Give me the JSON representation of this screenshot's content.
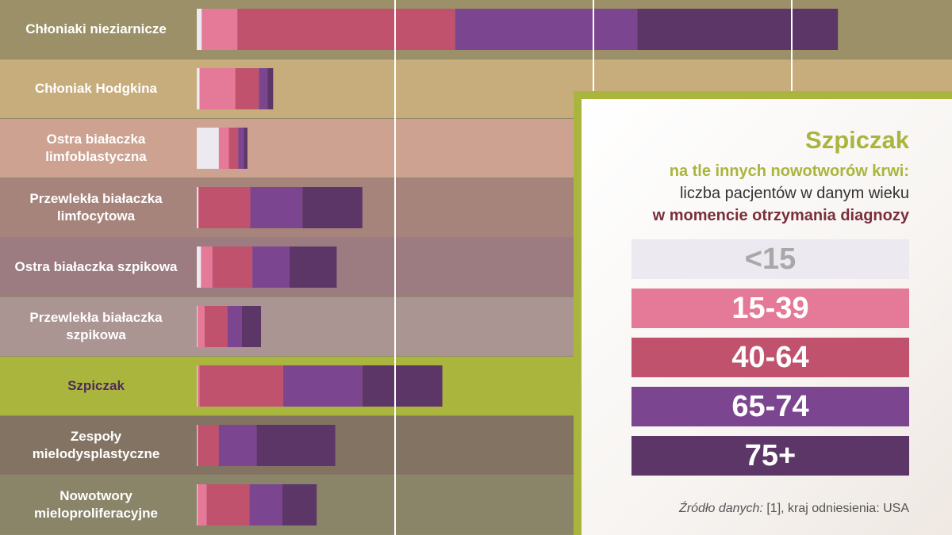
{
  "chart_data": {
    "type": "bar",
    "stacked": true,
    "orientation": "horizontal",
    "categories": [
      "Chłoniaki nieziarnicze",
      "Chłoniak Hodgkina",
      "Ostra białaczka limfoblastyczna",
      "Przewlekła białaczka limfocytowa",
      "Ostra białaczka szpikowa",
      "Przewlekła białaczka szpikowa",
      "Szpiczak",
      "Zespoły mielodysplastyczne",
      "Nowotwory mieloproliferacyjne"
    ],
    "series": [
      {
        "name": "<15",
        "color": "#ece9f0",
        "values": [
          7,
          4,
          31,
          2,
          6,
          1,
          1,
          1,
          1
        ]
      },
      {
        "name": "15-39",
        "color": "#e57a98",
        "values": [
          50,
          50,
          14,
          1,
          16,
          10,
          3,
          1,
          13
        ]
      },
      {
        "name": "40-64",
        "color": "#c0526e",
        "values": [
          305,
          33,
          13,
          72,
          56,
          32,
          117,
          29,
          60
        ]
      },
      {
        "name": "65-74",
        "color": "#7c4590",
        "values": [
          255,
          12,
          8,
          73,
          52,
          20,
          111,
          53,
          46
        ]
      },
      {
        "name": "75+",
        "color": "#5d3668",
        "values": [
          281,
          8,
          5,
          84,
          66,
          27,
          112,
          110,
          48
        ]
      }
    ],
    "highlight": "Szpiczak",
    "gridlines": true,
    "legend_placement": "right"
  },
  "legend": {
    "title": "Szpiczak",
    "subtitle_line1": "na tle innych nowotworów krwi:",
    "subtitle_line2": "liczba pacjentów w danym wieku",
    "subtitle_line3": "w momencie otrzymania diagnozy",
    "items": [
      {
        "label": "<15",
        "color": "#ece9f0",
        "text_color": "#a8a8a8"
      },
      {
        "label": "15-39",
        "color": "#e57a98",
        "text_color": "#ffffff"
      },
      {
        "label": "40-64",
        "color": "#c0526e",
        "text_color": "#ffffff"
      },
      {
        "label": "65-74",
        "color": "#7c4590",
        "text_color": "#ffffff"
      },
      {
        "label": "75+",
        "color": "#5d3668",
        "text_color": "#ffffff"
      }
    ],
    "source_label": "Źródło danych:",
    "source_text": "[1], kraj odniesienia: USA"
  },
  "rows": [
    {
      "label": "Chłoniaki nieziarnicze",
      "bg": "#9c9068",
      "text_color": "#ffffff"
    },
    {
      "label": "Chłoniak Hodgkina",
      "bg": "#c8ad7c",
      "text_color": "#ffffff"
    },
    {
      "label": "Ostra białaczka limfoblastyczna",
      "bg": "#cda290",
      "text_color": "#ffffff"
    },
    {
      "label": "Przewlekła białaczka limfocytowa",
      "bg": "#a6847c",
      "text_color": "#ffffff"
    },
    {
      "label": "Ostra białaczka szpikowa",
      "bg": "#9c7c80",
      "text_color": "#ffffff"
    },
    {
      "label": "Przewlekła białaczka szpikowa",
      "bg": "#ab9593",
      "text_color": "#ffffff"
    },
    {
      "label": "Szpiczak",
      "bg": "#aab53e",
      "text_color": "#4e2d58"
    },
    {
      "label": "Zespoły mielodysplastyczne",
      "bg": "#837362",
      "text_color": "#ffffff"
    },
    {
      "label": "Nowotwory mieloproliferacyjne",
      "bg": "#8a8569",
      "text_color": "#ffffff"
    }
  ]
}
